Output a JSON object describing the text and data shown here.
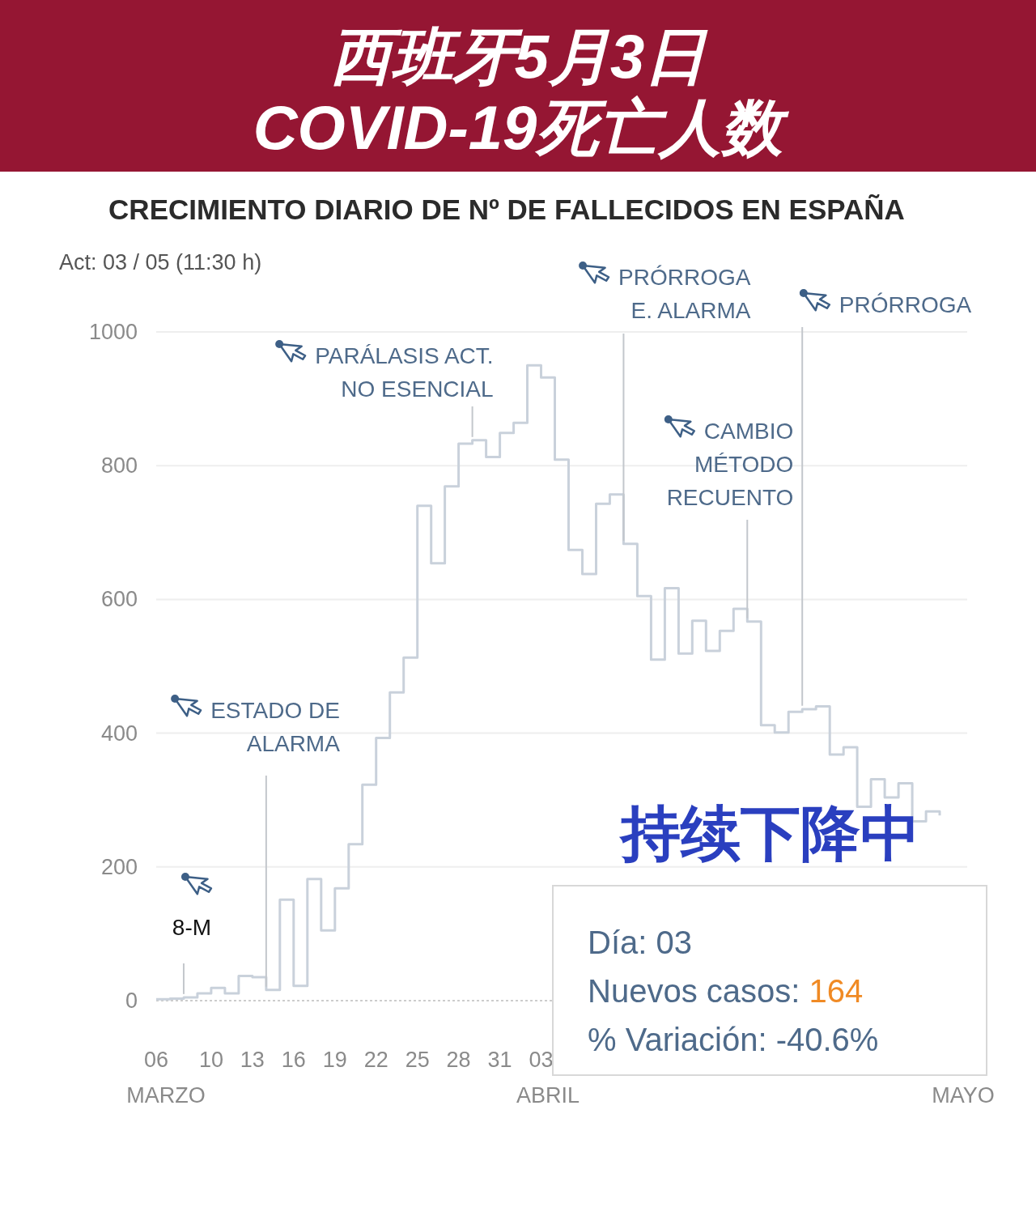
{
  "chart_data": {
    "type": "step",
    "title": "西班牙5月3日\nCOVID-19死亡人数",
    "subtitle": "CRECIMIENTO DIARIO DE Nº DE FALLECIDOS EN ESPAÑA",
    "x": [
      "--03-06",
      "--03-07",
      "--03-08",
      "--03-09",
      "--03-10",
      "--03-11",
      "--03-12",
      "--03-13",
      "--03-14",
      "--03-15",
      "--03-16",
      "--03-17",
      "--03-18",
      "--03-19",
      "--03-20",
      "--03-21",
      "--03-22",
      "--03-23",
      "--03-24",
      "--03-25",
      "--03-26",
      "--03-27",
      "--03-28",
      "--03-29",
      "--03-30",
      "--03-31",
      "--04-01",
      "--04-02",
      "--04-03",
      "--04-04",
      "--04-05",
      "--04-06",
      "--04-07",
      "--04-08",
      "--04-09",
      "--04-10",
      "--04-11",
      "--04-12",
      "--04-13",
      "--04-14",
      "--04-15",
      "--04-16",
      "--04-17",
      "--04-18",
      "--04-19",
      "--04-20",
      "--04-21",
      "--04-22",
      "--04-23",
      "--04-24",
      "--04-25",
      "--04-26",
      "--04-27",
      "--04-28",
      "--04-29",
      "--04-30",
      "--05-01",
      "--05-02"
    ],
    "series": [
      {
        "color": "#c9d1db",
        "values": [
          2,
          3,
          5,
          11,
          19,
          11,
          37,
          35,
          16,
          151,
          22,
          182,
          105,
          168,
          234,
          323,
          393,
          461,
          513,
          740,
          654,
          769,
          833,
          838,
          813,
          849,
          864,
          950,
          932,
          809,
          674,
          638,
          743,
          757,
          683,
          605,
          510,
          617,
          519,
          568,
          523,
          553,
          586,
          567,
          412,
          401,
          432,
          436,
          440,
          368,
          379,
          290,
          331,
          304,
          325,
          268,
          283,
          277
        ]
      }
    ],
    "xlim": [
      "--03-06",
      "--05-04"
    ],
    "ylim": [
      0,
      1000
    ],
    "yticks": [
      0,
      200,
      400,
      600,
      800,
      1000
    ],
    "xticks": [
      {
        "value": "--03-06",
        "label": "06"
      },
      {
        "value": "--03-10",
        "label": "10"
      },
      {
        "value": "--03-13",
        "label": "13"
      },
      {
        "value": "--03-16",
        "label": "16"
      },
      {
        "value": "--03-19",
        "label": "19"
      },
      {
        "value": "--03-22",
        "label": "22"
      },
      {
        "value": "--03-25",
        "label": "25"
      },
      {
        "value": "--03-28",
        "label": "28"
      },
      {
        "value": "--03-31",
        "label": "31"
      },
      {
        "value": "--04-03",
        "label": "03"
      }
    ],
    "grid": "y",
    "ref_lines": [
      {
        "axis": "x",
        "value": "--03-08",
        "label": "8-M",
        "color": "#c3c7cc"
      },
      {
        "axis": "x",
        "value": "--03-14",
        "label": "ESTADO DE\nALARMA",
        "color": "#c3c7cc"
      },
      {
        "axis": "x",
        "value": "--03-29",
        "label": "PARÁLASIS ACT.\nNO ESENCIAL",
        "color": "#c3c7cc"
      },
      {
        "axis": "x",
        "value": "--04-09",
        "label": "PRÓRROGA\nE. ALARMA",
        "color": "#c3c7cc"
      },
      {
        "axis": "x",
        "value": "--04-18",
        "label": "CAMBIO\nMÉTODO\nRECUENTO",
        "color": "#c3c7cc"
      },
      {
        "axis": "x",
        "value": "--04-22",
        "label": "PRÓRROGA",
        "color": "#c3c7cc"
      }
    ],
    "annotations": [
      "Act: 03 / 05 (11:30 h)",
      "持续下降中",
      "Día: 03",
      "Nuevos casos: 164",
      "% Variación: -40.6%",
      "MARZO",
      "ABRIL",
      "MAYO"
    ]
  }
}
